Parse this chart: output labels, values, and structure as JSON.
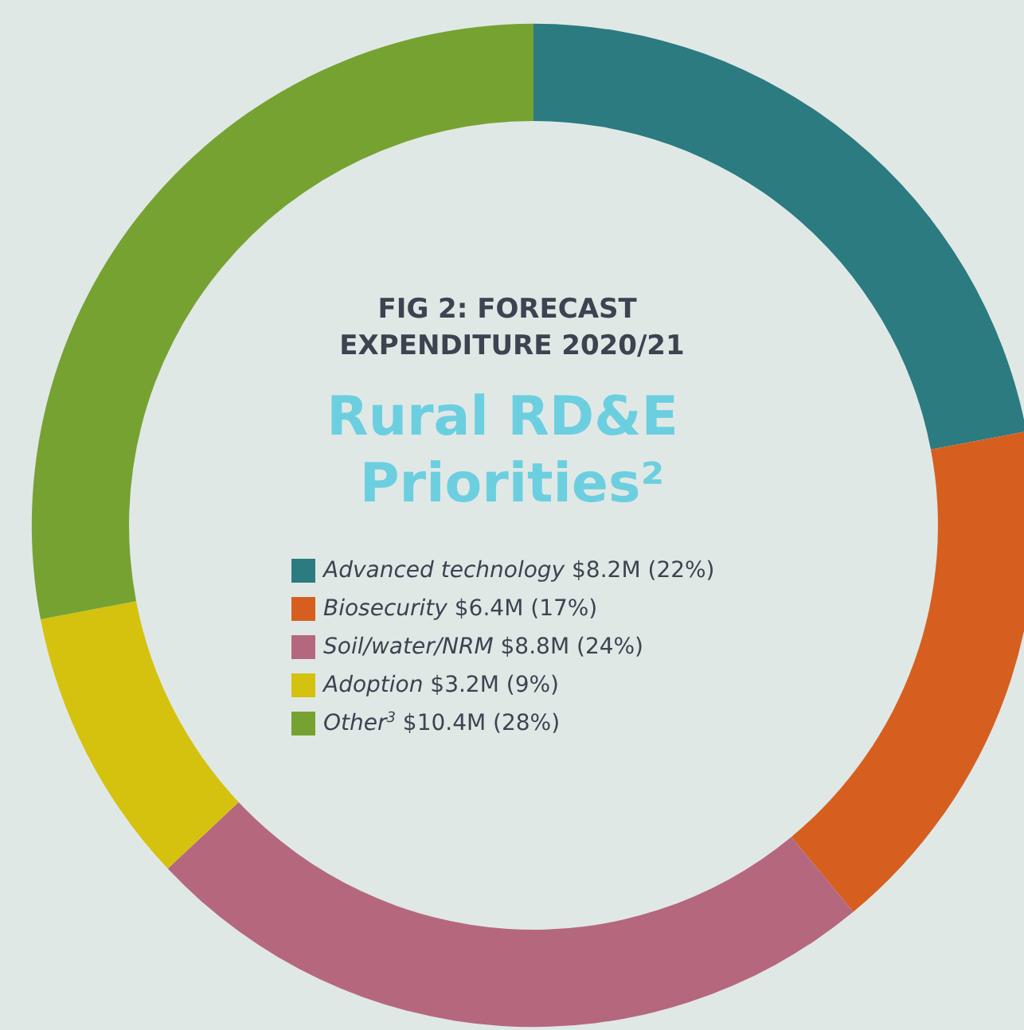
{
  "chart_data": {
    "type": "donut",
    "title": "FIG 2: FORECAST EXPENDITURE 2020/21",
    "subtitle": "Rural RD&E Priorities²",
    "categories": [
      "Advanced technology",
      "Biosecurity",
      "Soil/water/NRM",
      "Adoption",
      "Other$^{3}$"
    ],
    "values": [
      22,
      17,
      24,
      9,
      28
    ],
    "value_labels": [
      "$8.2M (22%)",
      "$6.4M (17%)",
      "$8.8M (24%)",
      "$3.2M (9%)",
      "$10.4M (28%)"
    ],
    "colors": [
      "#2b7b80",
      "#d65f1f",
      "#b5687d",
      "#d4c20f",
      "#76a232"
    ],
    "legend": "center"
  }
}
